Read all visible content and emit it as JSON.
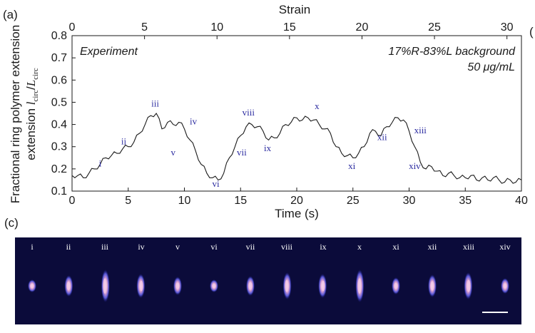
{
  "panel_a_label": "(a)",
  "panel_c_label": "(c)",
  "partial_label_right": "(",
  "chart_data": {
    "type": "line",
    "xlabel": "Time (s)",
    "ylabel": "Fractional ring polymer extension",
    "ylabel_var": "l",
    "ylabel_var_sub": "circ",
    "ylabel_den": "L",
    "ylabel_den_sub": "circ",
    "top_xlabel": "Strain",
    "xlim": [
      0,
      40
    ],
    "ylim": [
      0.1,
      0.8
    ],
    "xticks": [
      "0",
      "5",
      "10",
      "15",
      "20",
      "25",
      "30",
      "35",
      "40"
    ],
    "top_xticks": [
      "0",
      "5",
      "10",
      "15",
      "20",
      "25",
      "30"
    ],
    "top_xlim": [
      0,
      31
    ],
    "yticks": [
      "0.1",
      "0.2",
      "0.3",
      "0.4",
      "0.5",
      "0.6",
      "0.7",
      "0.8"
    ],
    "annotation_left": "Experiment",
    "annotation_right_1": "17%R-83%L background",
    "annotation_right_2": "50 μg/mL",
    "line_color": "#1a1a1a",
    "x": [
      0,
      0.5,
      1,
      1.5,
      2,
      2.5,
      3,
      3.5,
      4,
      4.5,
      5,
      5.5,
      6,
      6.5,
      7,
      7.5,
      8,
      8.5,
      9,
      9.5,
      10,
      10.5,
      11,
      11.5,
      12,
      12.5,
      13,
      13.5,
      14,
      14.5,
      15,
      15.5,
      16,
      16.5,
      17,
      17.5,
      18,
      18.5,
      19,
      19.5,
      20,
      20.5,
      21,
      21.5,
      22,
      22.5,
      23,
      23.5,
      24,
      24.5,
      25,
      25.5,
      26,
      26.5,
      27,
      27.5,
      28,
      28.5,
      29,
      29.5,
      30,
      30.5,
      31,
      31.5,
      32,
      32.5,
      33,
      33.5,
      34,
      34.5,
      35,
      35.5,
      36,
      36.5,
      37,
      37.5,
      38,
      38.5,
      39,
      39.5,
      40
    ],
    "y": [
      0.17,
      0.17,
      0.16,
      0.18,
      0.2,
      0.22,
      0.25,
      0.26,
      0.27,
      0.29,
      0.3,
      0.32,
      0.36,
      0.4,
      0.44,
      0.45,
      0.38,
      0.41,
      0.4,
      0.41,
      0.38,
      0.33,
      0.28,
      0.22,
      0.18,
      0.16,
      0.15,
      0.18,
      0.25,
      0.3,
      0.35,
      0.39,
      0.4,
      0.39,
      0.37,
      0.33,
      0.34,
      0.36,
      0.4,
      0.41,
      0.43,
      0.42,
      0.43,
      0.42,
      0.4,
      0.38,
      0.36,
      0.3,
      0.27,
      0.26,
      0.25,
      0.27,
      0.3,
      0.36,
      0.37,
      0.35,
      0.39,
      0.41,
      0.43,
      0.42,
      0.37,
      0.3,
      0.23,
      0.2,
      0.21,
      0.19,
      0.17,
      0.18,
      0.17,
      0.16,
      0.16,
      0.17,
      0.15,
      0.16,
      0.15,
      0.16,
      0.15,
      0.14,
      0.15,
      0.14,
      0.15
    ],
    "labels": [
      {
        "text": "i",
        "x": 2.5,
        "y": 0.21
      },
      {
        "text": "ii",
        "x": 4.6,
        "y": 0.31
      },
      {
        "text": "iii",
        "x": 7.4,
        "y": 0.48
      },
      {
        "text": "iv",
        "x": 10.8,
        "y": 0.4
      },
      {
        "text": "v",
        "x": 9.0,
        "y": 0.26
      },
      {
        "text": "vi",
        "x": 12.8,
        "y": 0.12
      },
      {
        "text": "vii",
        "x": 15.1,
        "y": 0.26
      },
      {
        "text": "viii",
        "x": 15.7,
        "y": 0.44
      },
      {
        "text": "ix",
        "x": 17.4,
        "y": 0.28
      },
      {
        "text": "x",
        "x": 21.8,
        "y": 0.47
      },
      {
        "text": "xi",
        "x": 24.9,
        "y": 0.2
      },
      {
        "text": "xii",
        "x": 27.6,
        "y": 0.33
      },
      {
        "text": "xiii",
        "x": 31.0,
        "y": 0.36
      },
      {
        "text": "xiv",
        "x": 30.5,
        "y": 0.2
      }
    ]
  },
  "strip": {
    "background": "#0b0b3a",
    "frames": [
      "i",
      "ii",
      "iii",
      "iv",
      "v",
      "vi",
      "vii",
      "viii",
      "ix",
      "x",
      "xi",
      "xii",
      "xiii",
      "xiv"
    ]
  }
}
